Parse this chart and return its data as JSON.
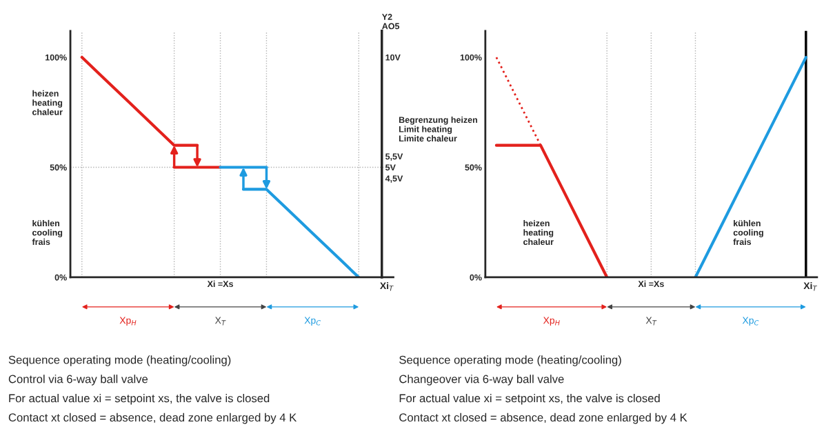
{
  "chart_data": [
    {
      "type": "line",
      "xlabel": "Xi$_{T}$",
      "y2label": "Y2\nAO5",
      "tick_labels": "y",
      "grid": "x",
      "categories": [
        null,
        null,
        null,
        null,
        null,
        null,
        "Xi =Xs",
        null,
        null,
        null,
        null,
        null,
        null,
        null
      ],
      "ylim": [
        0,
        112
      ],
      "yticks": [
        {
          "value": 0,
          "label": "0%"
        },
        {
          "value": 50,
          "label": "50%"
        },
        {
          "value": 100,
          "label": "100%"
        }
      ],
      "y2lim": [
        0,
        11.2
      ],
      "y2ticks": [
        {
          "value": 4.5,
          "label": "4,5V"
        },
        {
          "value": 5,
          "label": "5V"
        },
        {
          "value": 5.5,
          "label": "5,5V"
        },
        {
          "value": 10,
          "label": "10V"
        }
      ],
      "series": [
        {
          "color": "#e3211c",
          "values": [
            100,
            90,
            80,
            70,
            60,
            60,
            null,
            null,
            null,
            null,
            null,
            null,
            null,
            null
          ]
        },
        {
          "color": "#e3211c",
          "values": [
            null,
            null,
            null,
            null,
            50,
            50,
            50,
            null,
            null,
            null,
            null,
            null,
            null,
            null
          ]
        },
        {
          "color": "#1e9be0",
          "values": [
            null,
            null,
            null,
            null,
            null,
            null,
            50,
            50,
            50,
            null,
            null,
            null,
            null,
            null
          ]
        },
        {
          "color": "#1e9be0",
          "values": [
            null,
            null,
            null,
            null,
            null,
            null,
            null,
            40,
            40,
            30,
            20,
            10,
            0,
            null
          ]
        }
      ],
      "ref_lines": [
        {
          "axis": "y",
          "value": 50,
          "color": "#b0b0b0",
          "line_style": "dotted"
        }
      ],
      "annotations": [
        "heizen\nheating\nchaleur",
        "kühlen\ncooling\nfrais",
        "Xp$_{H}$",
        "X$_{T}$",
        "Xp$_{C}$",
        "Sequence operating mode (heating/cooling)",
        "Control via 6-way ball valve",
        "For actual value xi = setpoint xs, the valve is closed",
        "Contact xt closed = absence, dead zone enlarged by 4 K"
      ]
    },
    {
      "type": "line",
      "xlabel": "Xi$_{T}$",
      "tick_labels": "y",
      "grid": "x",
      "categories": [
        null,
        null,
        null,
        null,
        null,
        null,
        null,
        "Xi =Xs",
        null,
        null,
        null,
        null,
        null,
        null,
        null
      ],
      "ylim": [
        0,
        112
      ],
      "yticks": [
        {
          "value": 0,
          "label": "0%"
        },
        {
          "value": 50,
          "label": "50%"
        },
        {
          "value": 100,
          "label": "100%"
        }
      ],
      "series": [
        {
          "color": "#e3211c",
          "line_style": "dotted",
          "values": [
            100,
            80,
            60,
            null,
            null,
            null,
            null,
            null,
            null,
            null,
            null,
            null,
            null,
            null,
            null
          ]
        },
        {
          "color": "#e3211c",
          "values": [
            60,
            60,
            60,
            40,
            20,
            0,
            null,
            null,
            null,
            null,
            null,
            null,
            null,
            null,
            null
          ]
        },
        {
          "color": "#1e9be0",
          "values": [
            null,
            null,
            null,
            null,
            null,
            null,
            null,
            null,
            null,
            0,
            20,
            40,
            60,
            80,
            100
          ]
        }
      ],
      "annotations": [
        "Begrenzung heizen\nLimit heating\nLimite chaleur",
        "heizen\nheating\nchaleur",
        "kühlen\ncooling\nfrais",
        "Xp$_{H}$",
        "X$_{T}$",
        "Xp$_{C}$",
        "Sequence operating mode (heating/cooling)",
        "Changeover via 6-way ball valve",
        "For actual value xi = setpoint xs, the valve is closed",
        "Contact xt closed = absence, dead zone enlarged by 4 K"
      ]
    }
  ]
}
